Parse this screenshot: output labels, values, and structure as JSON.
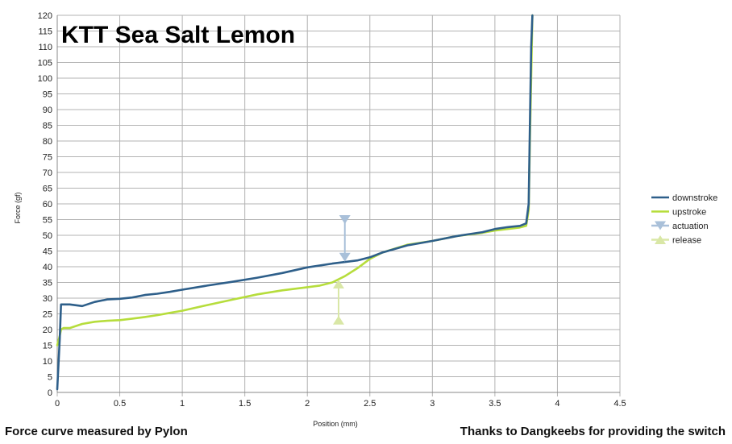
{
  "chart_data": {
    "type": "line",
    "title": "KTT Sea Salt Lemon",
    "xlabel": "Position (mm)",
    "ylabel": "Force (gf)",
    "xlim": [
      0,
      4.5
    ],
    "ylim": [
      0,
      120
    ],
    "x_ticks": [
      "0",
      "0.5",
      "1",
      "1.5",
      "2",
      "2.5",
      "3",
      "3.5",
      "4",
      "4.5"
    ],
    "y_ticks": [
      "0",
      "5",
      "10",
      "15",
      "20",
      "25",
      "30",
      "35",
      "40",
      "45",
      "50",
      "55",
      "60",
      "65",
      "70",
      "75",
      "80",
      "85",
      "90",
      "95",
      "100",
      "105",
      "110",
      "115",
      "120"
    ],
    "grid": true,
    "legend_position": "right",
    "series": [
      {
        "name": "downstroke",
        "color": "#2e5f8a",
        "x": [
          0.0,
          0.02,
          0.03,
          0.05,
          0.1,
          0.2,
          0.3,
          0.4,
          0.5,
          0.6,
          0.7,
          0.8,
          0.9,
          1.0,
          1.2,
          1.4,
          1.6,
          1.8,
          2.0,
          2.2,
          2.4,
          2.5,
          2.6,
          2.8,
          3.0,
          3.2,
          3.4,
          3.5,
          3.6,
          3.7,
          3.75,
          3.77,
          3.78,
          3.79,
          3.8
        ],
        "y": [
          1,
          17,
          28,
          28,
          28,
          27.5,
          28.8,
          29.6,
          29.8,
          30.2,
          31.0,
          31.4,
          32.0,
          32.7,
          34.0,
          35.2,
          36.5,
          38.0,
          39.8,
          41.0,
          42.0,
          43.0,
          44.5,
          46.8,
          48.2,
          49.8,
          51.0,
          52.0,
          52.6,
          53.0,
          53.8,
          60,
          85,
          110,
          120
        ]
      },
      {
        "name": "upstroke",
        "color": "#b6dd3c",
        "x": [
          0.0,
          0.02,
          0.03,
          0.05,
          0.1,
          0.2,
          0.3,
          0.4,
          0.5,
          0.6,
          0.7,
          0.8,
          0.9,
          1.0,
          1.2,
          1.4,
          1.6,
          1.8,
          2.0,
          2.1,
          2.2,
          2.3,
          2.4,
          2.5,
          2.6,
          2.8,
          3.0,
          3.2,
          3.4,
          3.5,
          3.6,
          3.7,
          3.75,
          3.77,
          3.78,
          3.79,
          3.8
        ],
        "y": [
          15,
          18,
          20,
          20.5,
          20.5,
          21.8,
          22.5,
          22.8,
          23.0,
          23.5,
          24.0,
          24.6,
          25.3,
          26.0,
          27.8,
          29.5,
          31.2,
          32.5,
          33.5,
          34.0,
          35.0,
          37.0,
          39.5,
          42.5,
          44.5,
          47.0,
          48.2,
          49.8,
          50.8,
          51.5,
          52.0,
          52.5,
          53.0,
          58,
          80,
          100,
          120
        ]
      },
      {
        "name": "actuation",
        "color": "#a9c0d9",
        "x": [
          2.3,
          2.3
        ],
        "y": [
          55,
          43
        ]
      },
      {
        "name": "release",
        "color": "#d9e7a6",
        "x": [
          2.25,
          2.25
        ],
        "y": [
          23,
          34.5
        ]
      }
    ]
  },
  "footer": {
    "left": "Force curve measured by Pylon",
    "right": "Thanks to Dangkeebs for providing the switch"
  }
}
